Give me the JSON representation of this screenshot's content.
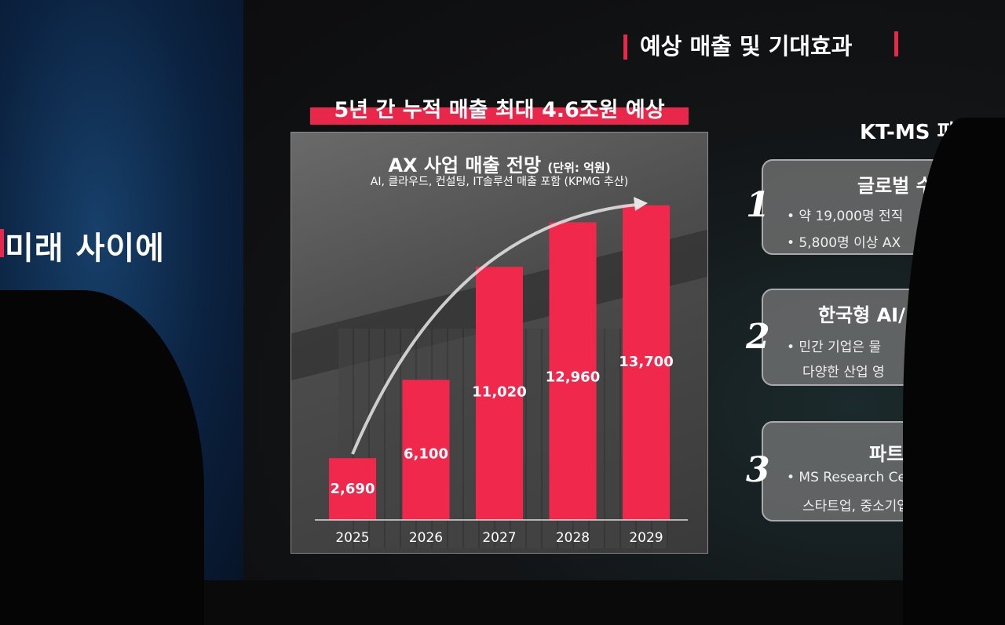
{
  "left_panel": {
    "text": "미래 사이에"
  },
  "slide": {
    "section_title": "예상 매출 및 기대효과",
    "banner": "5년 간 누적 매출 최대 4.6조원 예상",
    "right_title": "KT-MS 파트",
    "cards": [
      {
        "number": "1",
        "title": "글로벌 수",
        "lines": [
          "• 약 19,000명 전직",
          "• 5,800명 이상 AX"
        ]
      },
      {
        "number": "2",
        "title": "한국형 AI/",
        "lines": [
          "• 민간 기업은 물",
          "다양한 산업 영"
        ]
      },
      {
        "number": "3",
        "title": "파트너",
        "lines": [
          "• MS Research Cent",
          "스타트업, 중소기업,"
        ]
      }
    ]
  },
  "chart_data": {
    "type": "bar",
    "title": "AX 사업 매출 전망",
    "unit_note": "(단위: 억원)",
    "subtitle": "AI, 클라우드, 컨설팅, IT솔루션 매출 포함 (KPMG 추산)",
    "categories": [
      "2025",
      "2026",
      "2027",
      "2028",
      "2029"
    ],
    "values": [
      2690,
      6100,
      11020,
      12960,
      13700
    ],
    "labels": [
      "2,690",
      "6,100",
      "11,020",
      "12,960",
      "13,700"
    ],
    "ylim": [
      0,
      14000
    ],
    "grid": false,
    "bar_color": "#f0284c",
    "annotation": "growth-arrow"
  }
}
